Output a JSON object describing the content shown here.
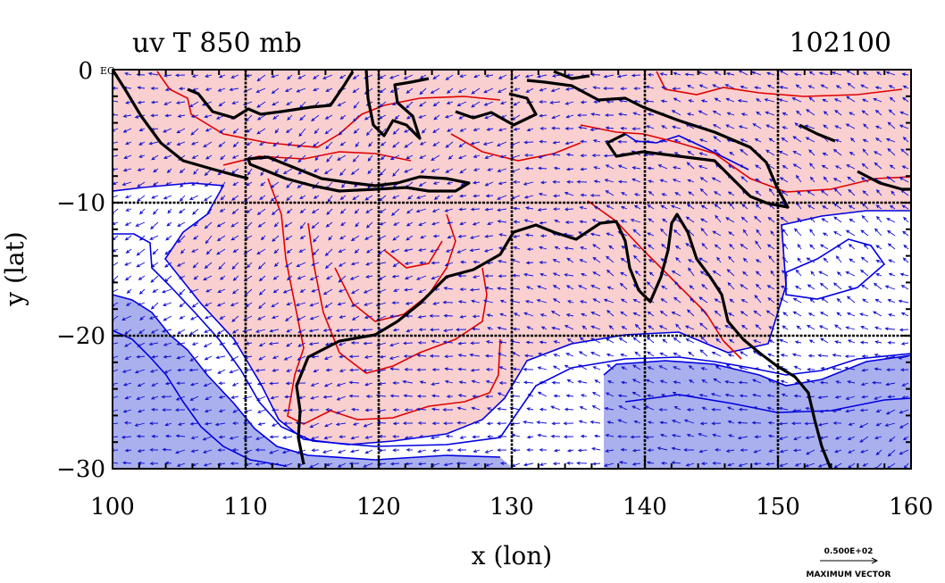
{
  "title_left": "uv T 850 mb",
  "title_right": "102100",
  "xlabel": "x (lon)",
  "ylabel": "y (lat)",
  "x_ticks": [
    "100",
    "110",
    "120",
    "130",
    "140",
    "150",
    "160"
  ],
  "y_ticks": [
    "0",
    "−10",
    "−20",
    "−30"
  ],
  "y_tick_suffix": "EQ",
  "legend": {
    "value": "0.500E+02",
    "label": "MAXIMUM VECTOR"
  },
  "colors": {
    "warm_fill": "#f9cfcf",
    "cold_fill": "#aab0ee",
    "warm_contour": "#e00000",
    "cold_contour": "#0000e0",
    "vectors": "#1010d0",
    "coast": "#000000"
  },
  "chart_data": {
    "type": "map",
    "x_range": [
      100,
      160
    ],
    "y_range": [
      -30,
      0
    ],
    "x_grid": [
      110,
      120,
      130,
      140,
      150
    ],
    "y_grid": [
      -10,
      -20
    ]
  }
}
